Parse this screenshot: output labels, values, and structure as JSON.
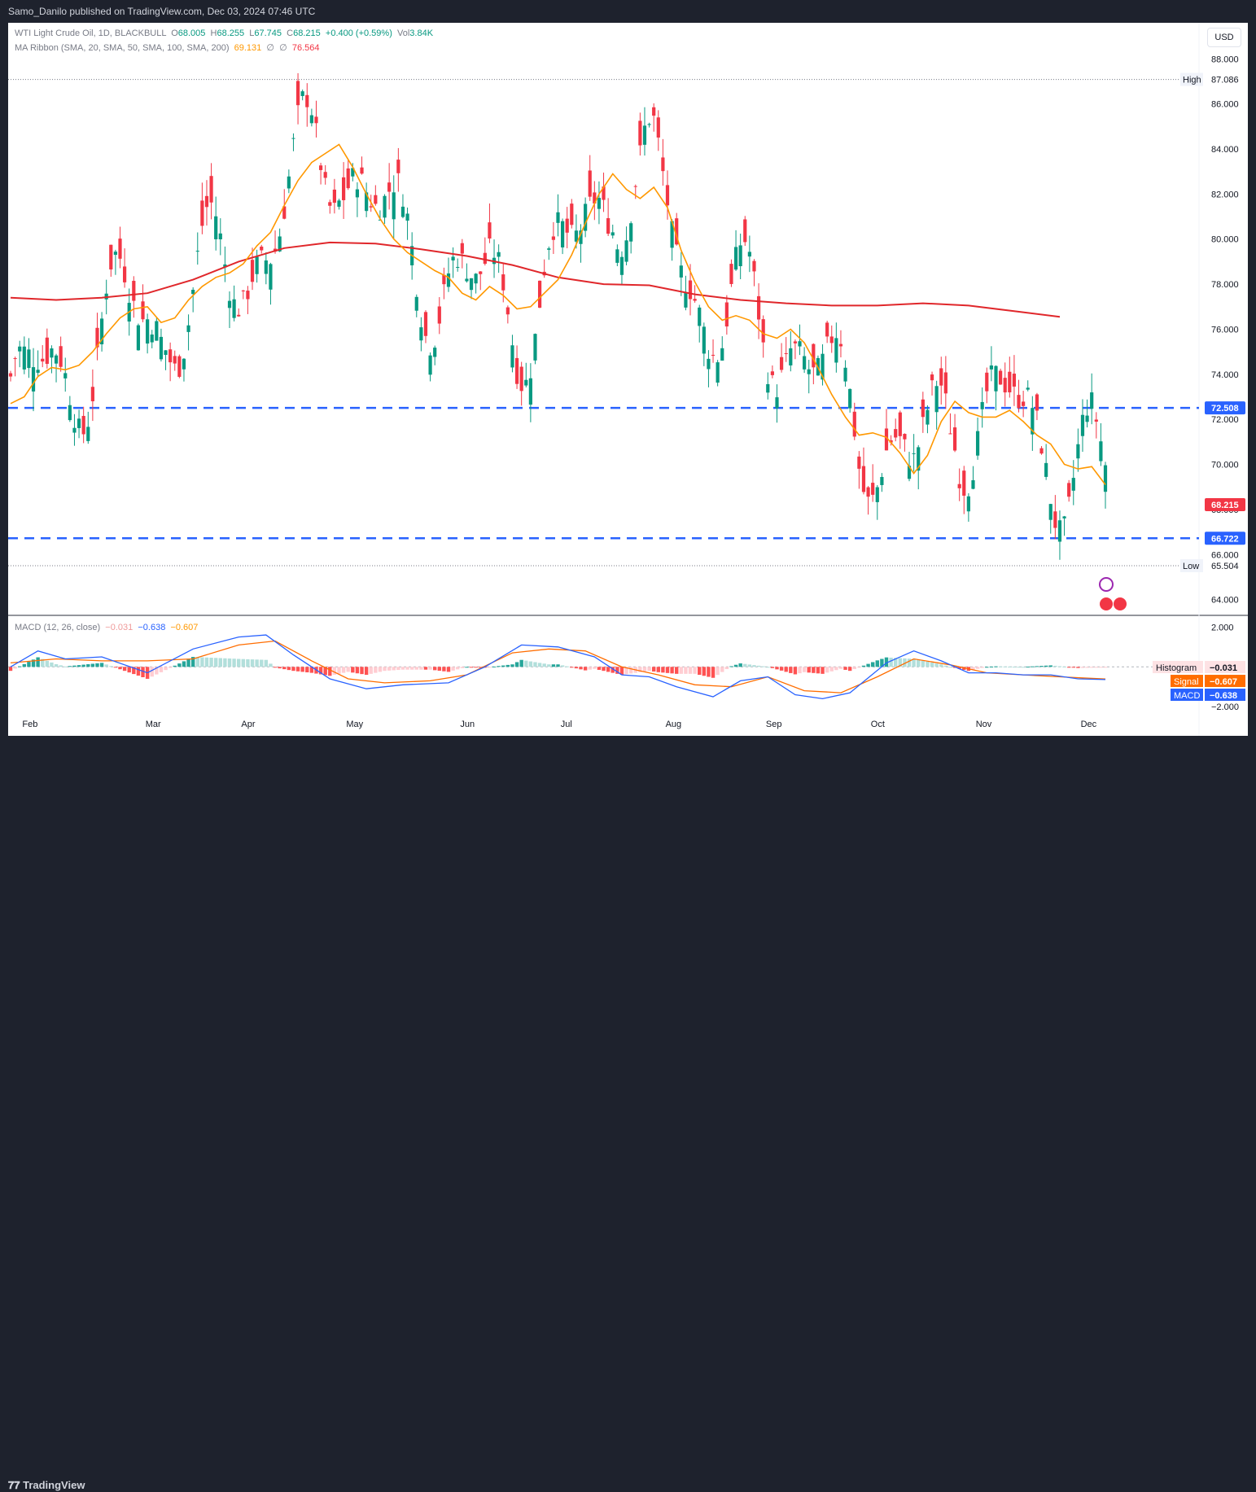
{
  "header": {
    "publisher_line": "Samo_Danilo published on TradingView.com, Dec 03, 2024 07:46 UTC"
  },
  "footer": {
    "brand": "TradingView"
  },
  "legend": {
    "symbol": "WTI Light Crude Oil, 1D, BLACKBULL",
    "o_label": "O",
    "o_value": "68.005",
    "h_label": "H",
    "h_value": "68.255",
    "l_label": "L",
    "l_value": "67.745",
    "c_label": "C",
    "c_value": "68.215",
    "change": "+0.400 (+0.59%)",
    "vol_label": "Vol",
    "vol_value": "3.84K",
    "ma_label": "MA Ribbon (SMA, 20, SMA, 50, SMA, 100, SMA, 200)",
    "ma20": "69.131",
    "ma50": "∅",
    "ma100": "∅",
    "ma200": "76.564",
    "macd_label": "MACD (12, 26, close)",
    "macd_hist": "−0.031",
    "macd_macd": "−0.638",
    "macd_signal": "−0.607"
  },
  "currency_button": "USD",
  "colors": {
    "up": "#089981",
    "down": "#f23645",
    "ma20": "#ff9800",
    "ma200": "#e0272b",
    "level": "#2962ff",
    "macd": "#2962ff",
    "signal": "#ff6d00"
  },
  "chart_data": {
    "type": "candlestick",
    "price_axis": {
      "ticks": [
        "88.000",
        "86.000",
        "84.000",
        "82.000",
        "80.000",
        "78.000",
        "76.000",
        "74.000",
        "72.000",
        "70.000",
        "68.000",
        "66.000",
        "64.000"
      ],
      "ylim": [
        63.3,
        89.6
      ]
    },
    "time_axis": {
      "labels": [
        "Feb",
        "Mar",
        "Apr",
        "May",
        "Jun",
        "Jul",
        "Aug",
        "Sep",
        "Oct",
        "Nov",
        "Dec"
      ]
    },
    "high_marker": {
      "label": "High",
      "value": "87.086"
    },
    "low_marker": {
      "label": "Low",
      "value": "65.504"
    },
    "last_price": "68.215",
    "resistance": {
      "value": "72.508"
    },
    "support": {
      "value": "66.722"
    },
    "ma_ribbon": {
      "sma20": [
        [
          0,
          72.7
        ],
        [
          3,
          73.0
        ],
        [
          6,
          73.9
        ],
        [
          9,
          74.3
        ],
        [
          12,
          74.2
        ],
        [
          15,
          74.4
        ],
        [
          18,
          75.0
        ],
        [
          21,
          75.8
        ],
        [
          24,
          76.5
        ],
        [
          27,
          76.9
        ],
        [
          30,
          77.0
        ],
        [
          33,
          76.3
        ],
        [
          36,
          76.5
        ],
        [
          39,
          77.3
        ],
        [
          42,
          77.9
        ],
        [
          45,
          78.3
        ],
        [
          48,
          78.5
        ],
        [
          51,
          78.9
        ],
        [
          54,
          79.7
        ],
        [
          57,
          80.3
        ],
        [
          60,
          81.5
        ],
        [
          63,
          82.6
        ],
        [
          66,
          83.4
        ],
        [
          69,
          83.8
        ],
        [
          72,
          84.2
        ],
        [
          75,
          83.2
        ],
        [
          78,
          82.0
        ],
        [
          81,
          80.9
        ],
        [
          84,
          80.0
        ],
        [
          87,
          79.4
        ],
        [
          90,
          79.0
        ],
        [
          93,
          78.6
        ],
        [
          96,
          78.3
        ],
        [
          99,
          77.6
        ],
        [
          102,
          77.3
        ],
        [
          105,
          77.9
        ],
        [
          108,
          77.5
        ],
        [
          111,
          76.9
        ],
        [
          114,
          77.0
        ],
        [
          117,
          77.6
        ],
        [
          120,
          78.2
        ],
        [
          123,
          79.3
        ],
        [
          126,
          80.7
        ],
        [
          129,
          82.0
        ],
        [
          132,
          82.9
        ],
        [
          135,
          82.2
        ],
        [
          138,
          81.8
        ],
        [
          141,
          82.3
        ],
        [
          144,
          81.4
        ],
        [
          147,
          79.5
        ],
        [
          150,
          78.1
        ],
        [
          153,
          77.0
        ],
        [
          156,
          76.4
        ],
        [
          159,
          76.6
        ],
        [
          162,
          76.4
        ],
        [
          165,
          75.8
        ],
        [
          168,
          75.6
        ],
        [
          171,
          76.0
        ],
        [
          174,
          75.4
        ],
        [
          177,
          74.3
        ],
        [
          180,
          73.1
        ],
        [
          183,
          72.1
        ],
        [
          186,
          71.3
        ],
        [
          189,
          71.4
        ],
        [
          192,
          71.2
        ],
        [
          195,
          70.5
        ],
        [
          198,
          69.6
        ],
        [
          201,
          70.4
        ],
        [
          204,
          71.9
        ],
        [
          207,
          72.8
        ],
        [
          210,
          72.3
        ],
        [
          213,
          72.1
        ],
        [
          216,
          72.1
        ],
        [
          219,
          72.4
        ],
        [
          222,
          71.9
        ],
        [
          225,
          71.3
        ],
        [
          228,
          70.9
        ],
        [
          231,
          70.0
        ],
        [
          234,
          69.8
        ],
        [
          237,
          69.9
        ],
        [
          240,
          69.1
        ]
      ],
      "sma200": [
        [
          0,
          77.4
        ],
        [
          10,
          77.3
        ],
        [
          20,
          77.4
        ],
        [
          30,
          77.6
        ],
        [
          40,
          78.2
        ],
        [
          50,
          79.0
        ],
        [
          60,
          79.6
        ],
        [
          70,
          79.85
        ],
        [
          80,
          79.8
        ],
        [
          90,
          79.55
        ],
        [
          100,
          79.25
        ],
        [
          110,
          78.85
        ],
        [
          120,
          78.3
        ],
        [
          130,
          78.0
        ],
        [
          140,
          77.95
        ],
        [
          150,
          77.55
        ],
        [
          160,
          77.3
        ],
        [
          170,
          77.15
        ],
        [
          180,
          77.05
        ],
        [
          190,
          77.05
        ],
        [
          200,
          77.15
        ],
        [
          210,
          77.05
        ],
        [
          220,
          76.8
        ],
        [
          230,
          76.55
        ]
      ]
    },
    "macd": {
      "scale_ticks": [
        "2.000",
        "−2.000"
      ],
      "range": [
        -2.4,
        2.3
      ],
      "macd_line": [
        [
          0,
          0.0
        ],
        [
          6,
          0.8
        ],
        [
          12,
          0.4
        ],
        [
          20,
          0.5
        ],
        [
          30,
          -0.3
        ],
        [
          40,
          0.9
        ],
        [
          50,
          1.5
        ],
        [
          56,
          1.6
        ],
        [
          62,
          0.6
        ],
        [
          70,
          -0.6
        ],
        [
          78,
          -1.1
        ],
        [
          86,
          -0.9
        ],
        [
          96,
          -0.8
        ],
        [
          104,
          0.0
        ],
        [
          112,
          1.1
        ],
        [
          120,
          1.0
        ],
        [
          128,
          0.5
        ],
        [
          134,
          -0.4
        ],
        [
          140,
          -0.5
        ],
        [
          146,
          -1.0
        ],
        [
          154,
          -1.5
        ],
        [
          160,
          -0.7
        ],
        [
          166,
          -0.5
        ],
        [
          172,
          -1.4
        ],
        [
          178,
          -1.6
        ],
        [
          184,
          -1.3
        ],
        [
          192,
          0.2
        ],
        [
          198,
          0.8
        ],
        [
          204,
          0.3
        ],
        [
          210,
          -0.3
        ],
        [
          216,
          -0.3
        ],
        [
          222,
          -0.4
        ],
        [
          228,
          -0.4
        ],
        [
          234,
          -0.6
        ],
        [
          240,
          -0.64
        ]
      ],
      "signal_line": [
        [
          0,
          0.2
        ],
        [
          10,
          0.4
        ],
        [
          20,
          0.3
        ],
        [
          30,
          0.3
        ],
        [
          40,
          0.4
        ],
        [
          50,
          1.1
        ],
        [
          58,
          1.3
        ],
        [
          66,
          0.3
        ],
        [
          74,
          -0.6
        ],
        [
          82,
          -0.8
        ],
        [
          92,
          -0.7
        ],
        [
          100,
          -0.4
        ],
        [
          110,
          0.7
        ],
        [
          118,
          0.9
        ],
        [
          126,
          0.8
        ],
        [
          134,
          0.0
        ],
        [
          142,
          -0.4
        ],
        [
          150,
          -0.9
        ],
        [
          158,
          -1.0
        ],
        [
          166,
          -0.5
        ],
        [
          174,
          -1.2
        ],
        [
          182,
          -1.3
        ],
        [
          190,
          -0.5
        ],
        [
          198,
          0.4
        ],
        [
          206,
          0.1
        ],
        [
          214,
          -0.3
        ],
        [
          222,
          -0.4
        ],
        [
          230,
          -0.5
        ],
        [
          240,
          -0.61
        ]
      ]
    }
  }
}
